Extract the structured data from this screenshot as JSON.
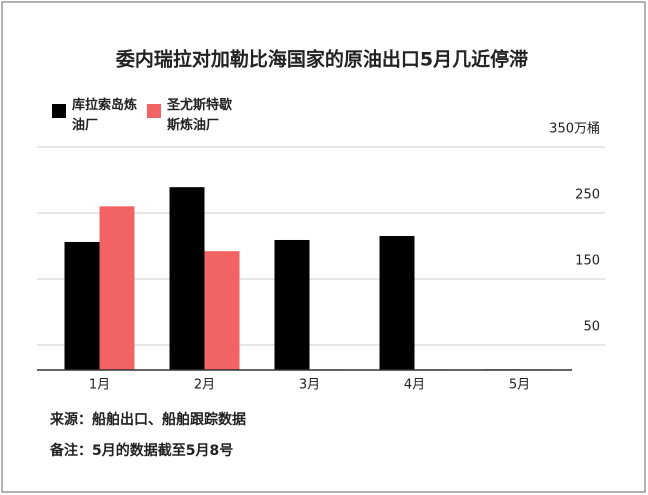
{
  "chart_data": {
    "type": "bar",
    "title": "委内瑞拉对加勒比海国家的原油出口5月几近停滞",
    "categories": [
      "1月",
      "2月",
      "3月",
      "4月",
      "5月"
    ],
    "series": [
      {
        "name": "库拉索岛炼油厂",
        "color": "#000000",
        "values": [
          194,
          277,
          197,
          203,
          1
        ]
      },
      {
        "name": "圣尤斯特歇斯炼油厂",
        "color": "#f26464",
        "values": [
          248,
          180,
          1,
          1,
          1
        ]
      }
    ],
    "ylim": [
      0,
      350
    ],
    "yticks": [
      50,
      150,
      250,
      {
        "value": 350,
        "label": "350万桶"
      }
    ],
    "grid": true,
    "notes": [
      "来源：船舶出口、船舶跟踪数据",
      "备注：5月的数据截至5月8号"
    ]
  }
}
